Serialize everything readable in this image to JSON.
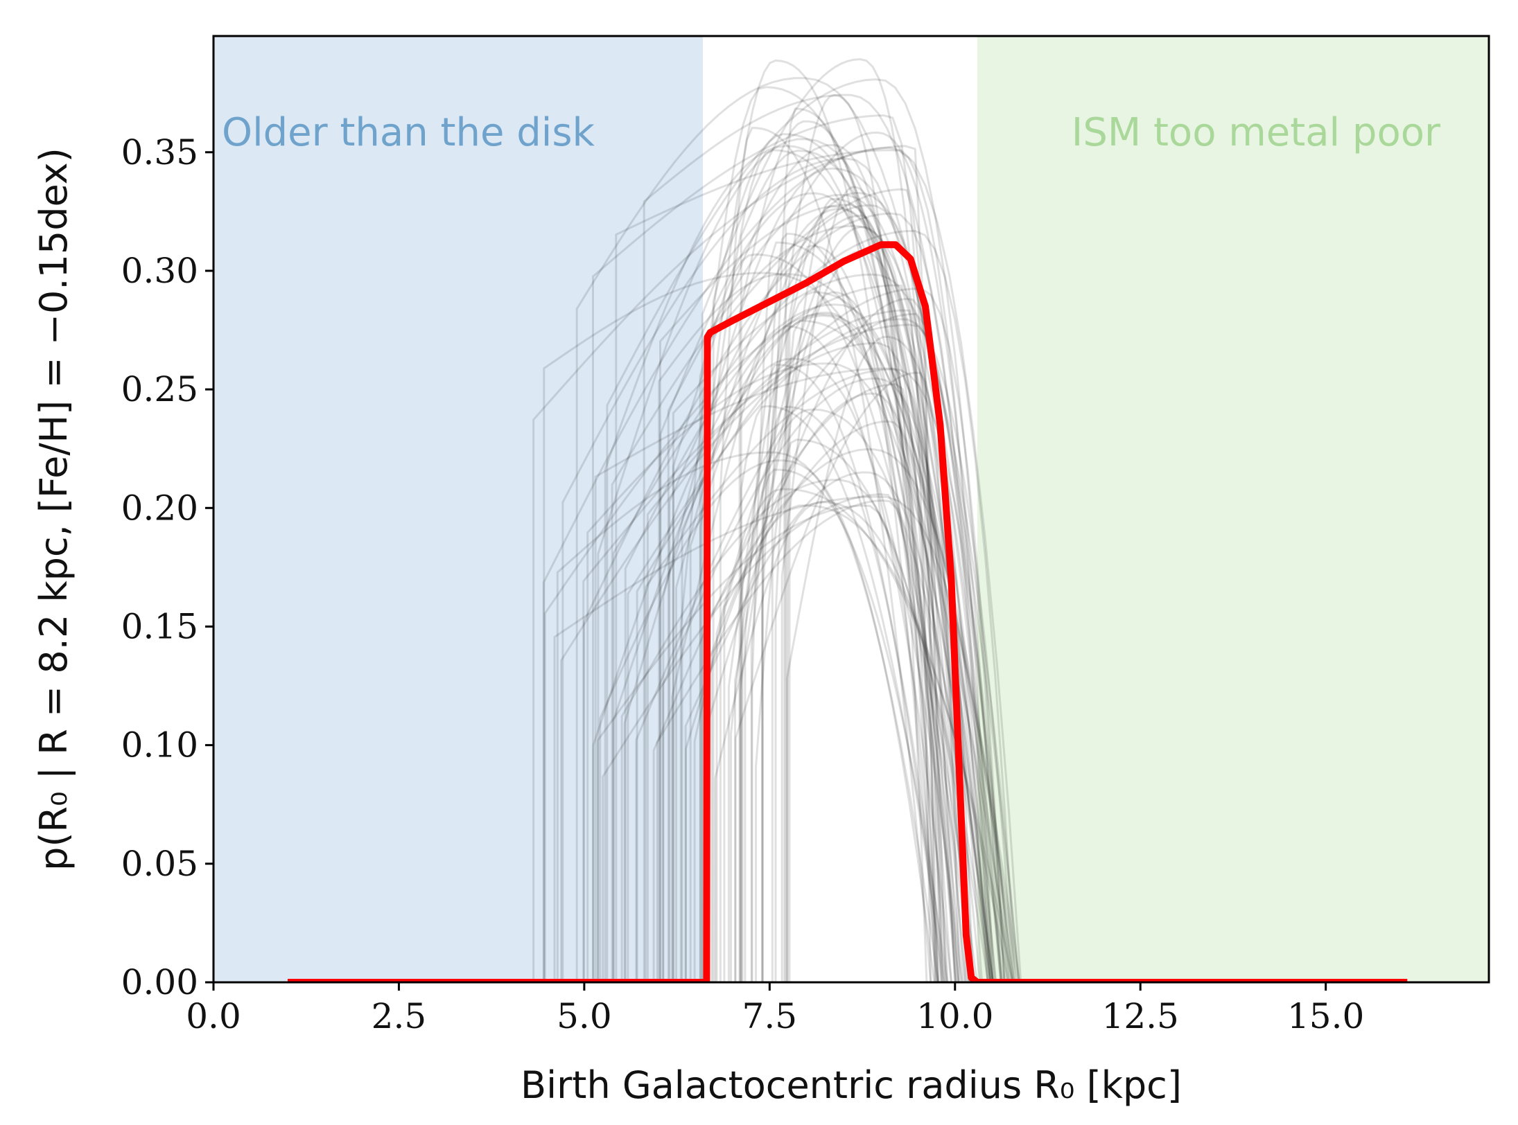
{
  "chart_data": {
    "type": "line",
    "xlabel": "Birth Galactocentric radius R₀ [kpc]",
    "ylabel": "p(R₀ | R = 8.2 kpc, [Fe/H] = −0.15dex)",
    "xlim": [
      0.0,
      17.2
    ],
    "ylim": [
      0.0,
      0.399
    ],
    "xticks": [
      0.0,
      2.5,
      5.0,
      7.5,
      10.0,
      12.5,
      15.0
    ],
    "xtick_labels": [
      "0.0",
      "2.5",
      "5.0",
      "7.5",
      "10.0",
      "12.5",
      "15.0"
    ],
    "yticks": [
      0.0,
      0.05,
      0.1,
      0.15,
      0.2,
      0.25,
      0.3,
      0.35
    ],
    "ytick_labels": [
      "0.00",
      "0.05",
      "0.10",
      "0.15",
      "0.20",
      "0.25",
      "0.30",
      "0.35"
    ],
    "grid": false,
    "regions": [
      {
        "label": "Older than the disk",
        "x_from": 0.0,
        "x_to": 6.6,
        "color": "#dce9f5",
        "label_color": "#6fa3cc"
      },
      {
        "label": "ISM too metal poor",
        "x_from": 10.3,
        "x_to": 17.2,
        "color": "#e8f5e2",
        "label_color": "#a9d89a"
      }
    ],
    "mean_curve": {
      "color": "#ff0000",
      "x": [
        1.0,
        6.65,
        6.66,
        6.7,
        7.0,
        7.5,
        8.0,
        8.5,
        9.0,
        9.2,
        9.4,
        9.6,
        9.8,
        9.95,
        10.05,
        10.15,
        10.22,
        10.3,
        16.1
      ],
      "y": [
        0.0,
        0.0,
        0.272,
        0.274,
        0.279,
        0.287,
        0.295,
        0.304,
        0.311,
        0.311,
        0.305,
        0.285,
        0.235,
        0.17,
        0.095,
        0.02,
        0.002,
        0.0,
        0.0
      ]
    },
    "samples": {
      "color": "#000000",
      "opacity": 0.12,
      "count": 90,
      "x_start_range": [
        4.3,
        7.8
      ],
      "x_end_range": [
        9.6,
        10.9
      ],
      "peak_x_range": [
        7.2,
        9.6
      ],
      "peak_y_range": [
        0.2,
        0.39
      ]
    }
  }
}
